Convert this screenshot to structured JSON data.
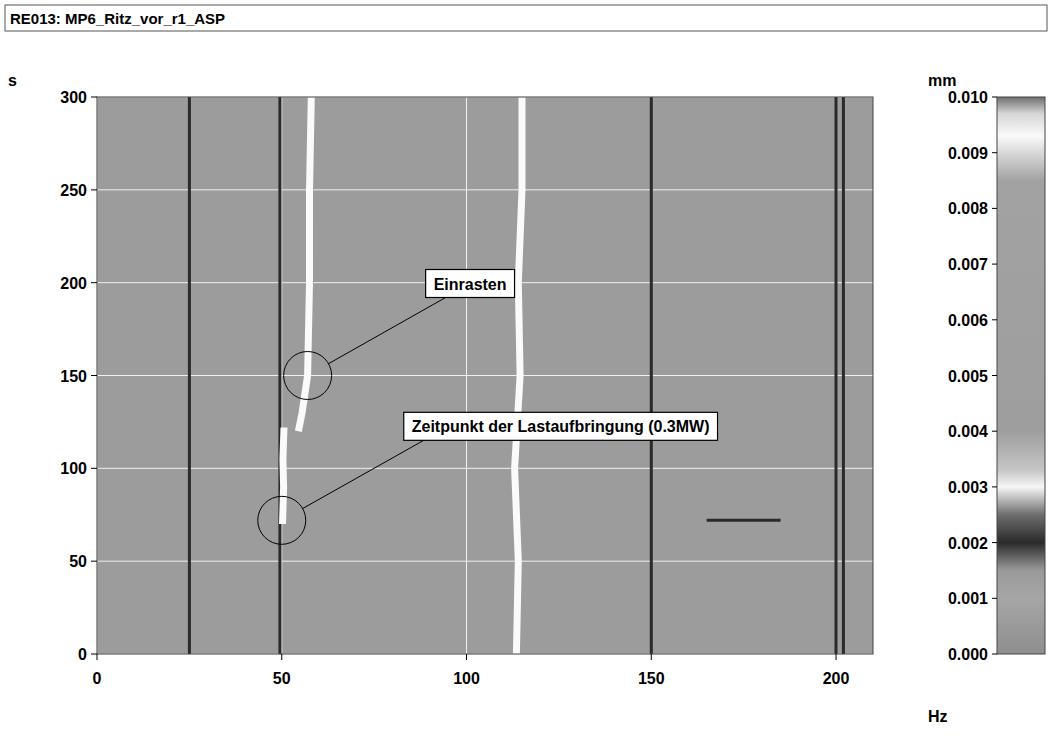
{
  "chart_data": {
    "type": "spectrogram",
    "title": "RE013: MP6_Ritz_vor_r1_ASP",
    "x_label": "Hz",
    "y_label": "s",
    "colorbar_label": "mm",
    "xlim": [
      0,
      210
    ],
    "ylim": [
      0,
      300
    ],
    "xticks": [
      0,
      50,
      100,
      150,
      200
    ],
    "yticks": [
      0,
      50,
      100,
      150,
      200,
      250,
      300
    ],
    "grid": true,
    "colorbar": {
      "range": [
        0,
        0.01
      ],
      "ticks": [
        {
          "value": 0,
          "label": "0.000"
        },
        {
          "value": 0.001,
          "label": "0.001"
        },
        {
          "value": 0.002,
          "label": "0.002"
        },
        {
          "value": 0.003,
          "label": "0.003"
        },
        {
          "value": 0.004,
          "label": "0.004"
        },
        {
          "value": 0.005,
          "label": "0.005"
        },
        {
          "value": 0.006,
          "label": "0.006"
        },
        {
          "value": 0.007,
          "label": "0.007"
        },
        {
          "value": 0.008,
          "label": "0.008"
        },
        {
          "value": 0.009,
          "label": "0.009"
        },
        {
          "value": 0.01,
          "label": "0.010"
        }
      ]
    },
    "series": [
      {
        "x": [
          25,
          25
        ],
        "y": [
          0,
          300
        ],
        "amplitude": 0.002
      },
      {
        "x": [
          49.5,
          49.5
        ],
        "y": [
          0,
          300
        ],
        "amplitude": 0.002
      },
      {
        "x": [
          50.2,
          50.5,
          50.3,
          50.6
        ],
        "y": [
          70,
          90,
          105,
          122
        ],
        "amplitude": 0.0093
      },
      {
        "x": [
          54.5,
          55.5,
          57,
          57.5,
          57.5,
          58
        ],
        "y": [
          120,
          130,
          150,
          200,
          250,
          300
        ],
        "amplitude": 0.0093
      },
      {
        "x": [
          113.5,
          114,
          113,
          114.5,
          114,
          115,
          115
        ],
        "y": [
          0,
          50,
          100,
          150,
          200,
          250,
          300
        ],
        "amplitude": 0.0093
      },
      {
        "x": [
          150,
          150
        ],
        "y": [
          0,
          300
        ],
        "amplitude": 0.002
      },
      {
        "x": [
          200,
          200
        ],
        "y": [
          0,
          300
        ],
        "amplitude": 0.002
      },
      {
        "x": [
          202,
          202
        ],
        "y": [
          0,
          300
        ],
        "amplitude": 0.002
      },
      {
        "x": [
          165,
          185
        ],
        "y": [
          72,
          72
        ],
        "amplitude": 0.002
      }
    ],
    "annotations": [
      {
        "text": "Einrasten",
        "x": 57,
        "y": 150
      },
      {
        "text": "Zeitpunkt der Lastaufbringung (0.3MW)",
        "x": 50,
        "y": 72
      }
    ]
  }
}
